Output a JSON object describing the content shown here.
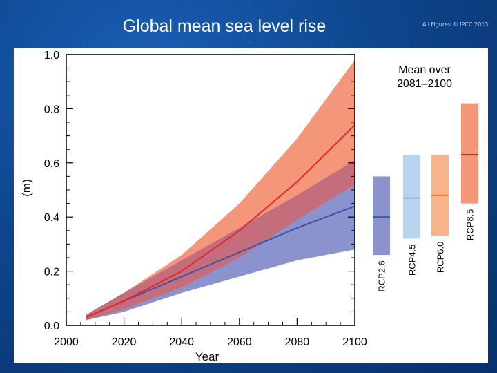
{
  "slide": {
    "title": "Global mean sea level rise",
    "copyright": "All Figures © IPCC 2013"
  },
  "colors": {
    "background": "#0e478f",
    "rcp85_band": "#f3967a",
    "rcp85_line": "#e0282e",
    "rcp26_band": "#8b93cf",
    "rcp26_line": "#3b54a6",
    "overlap_band": "#c46e7c",
    "rcp45_bar": "#b9d3ee",
    "rcp45_line": "#7fb3e0",
    "rcp60_bar": "#f9b38a",
    "rcp60_line": "#ee7a2e",
    "rcp85_bar": "#f3967a",
    "rcp85_bar_line": "#c0282e",
    "rcp26_bar": "#8b93cf",
    "rcp26_bar_line": "#3b54a6"
  },
  "chart_data": {
    "type": "area",
    "ylabel": "(m)",
    "xlabel": "Year",
    "xlim": [
      2000,
      2100
    ],
    "ylim": [
      0.0,
      1.0
    ],
    "x_ticks": [
      "2000",
      "2020",
      "2040",
      "2060",
      "2080",
      "2100"
    ],
    "y_ticks": [
      "0.0",
      "0.2",
      "0.4",
      "0.6",
      "0.8",
      "1.0"
    ],
    "x": [
      2007,
      2020,
      2040,
      2060,
      2080,
      2100
    ],
    "series": [
      {
        "name": "RCP8.5",
        "mean": [
          0.03,
          0.09,
          0.2,
          0.35,
          0.53,
          0.74
        ],
        "lower": [
          0.02,
          0.06,
          0.14,
          0.25,
          0.39,
          0.52
        ],
        "upper": [
          0.04,
          0.12,
          0.26,
          0.45,
          0.69,
          0.98
        ]
      },
      {
        "name": "RCP2.6",
        "mean": [
          0.03,
          0.09,
          0.18,
          0.27,
          0.36,
          0.44
        ],
        "lower": [
          0.02,
          0.05,
          0.12,
          0.18,
          0.24,
          0.28
        ],
        "upper": [
          0.04,
          0.12,
          0.24,
          0.36,
          0.48,
          0.61
        ]
      }
    ],
    "side_panel": {
      "title_line1": "Mean over",
      "title_line2": "2081–2100",
      "bars": [
        {
          "name": "RCP2.6",
          "low": 0.26,
          "mean": 0.4,
          "high": 0.55
        },
        {
          "name": "RCP4.5",
          "low": 0.32,
          "mean": 0.47,
          "high": 0.63
        },
        {
          "name": "RCP6.0",
          "low": 0.33,
          "mean": 0.48,
          "high": 0.63
        },
        {
          "name": "RCP8.5",
          "low": 0.45,
          "mean": 0.63,
          "high": 0.82
        }
      ]
    }
  }
}
